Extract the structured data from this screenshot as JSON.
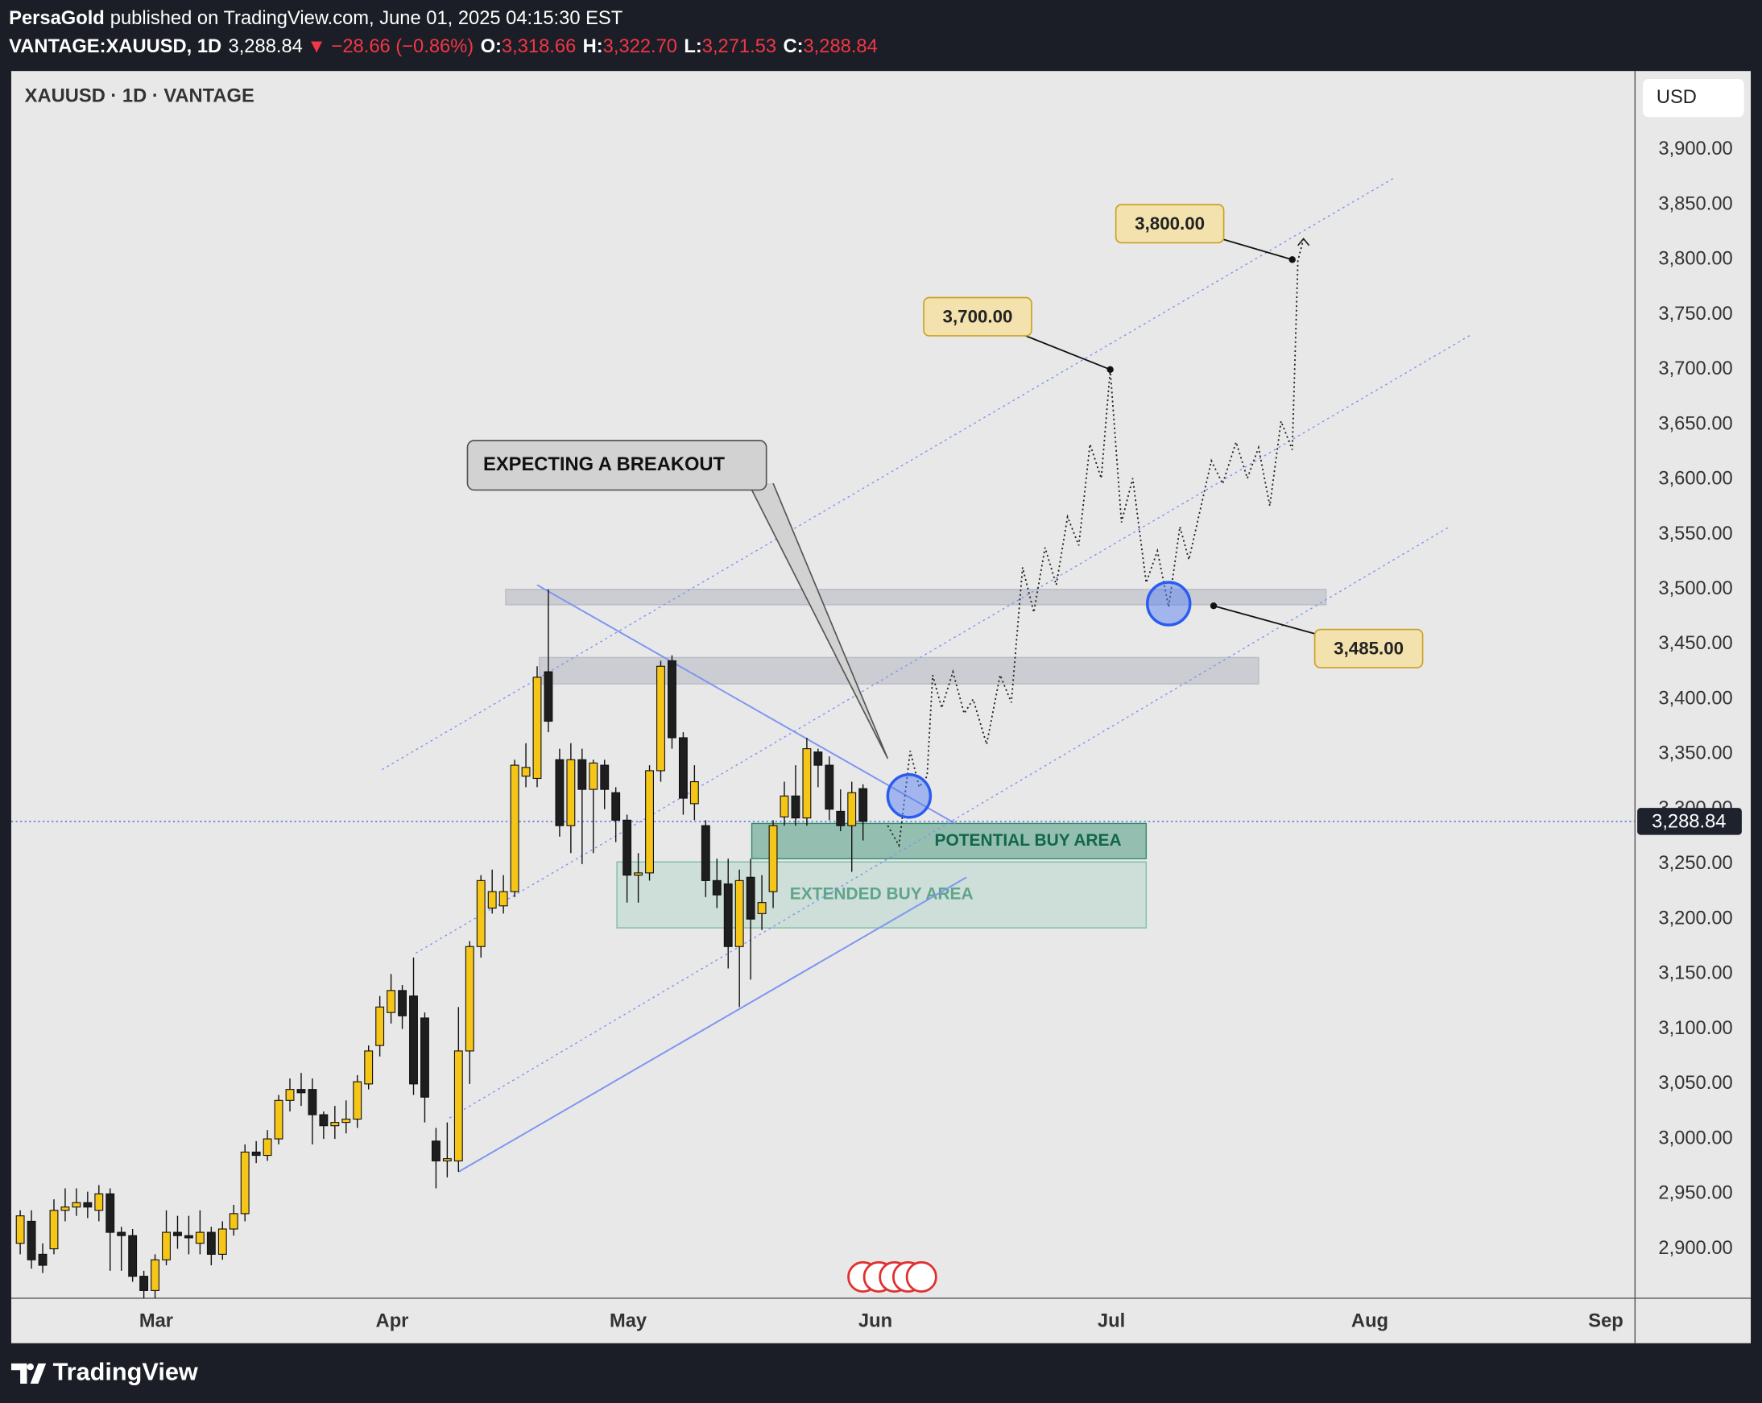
{
  "header": {
    "publisher": "PersaGold",
    "published": "published on TradingView.com, June 01, 2025 04:15:30 EST",
    "symbol": "VANTAGE:XAUUSD, 1D",
    "price": "3,288.84",
    "change": "▼ −28.66 (−0.86%)",
    "ohlc": [
      {
        "key": "O:",
        "value": "3,318.66"
      },
      {
        "key": "H:",
        "value": "3,322.70"
      },
      {
        "key": "L:",
        "value": "3,271.53"
      },
      {
        "key": "C:",
        "value": "3,288.84"
      }
    ]
  },
  "chart_data": {
    "type": "candlestick",
    "title": "XAUUSD · 1D · VANTAGE",
    "currency": "USD",
    "grid": false,
    "up_color": "#f5c518",
    "down_color": "#1e1e1e",
    "x": [
      0,
      1,
      2,
      3,
      4,
      5,
      6,
      7,
      8,
      9,
      10,
      11,
      12,
      13,
      14,
      15,
      16,
      17,
      18,
      19,
      20,
      21,
      22,
      23,
      24,
      25,
      26,
      27,
      28,
      29,
      30,
      31,
      32,
      33,
      34,
      35,
      36,
      37,
      38,
      39,
      40,
      41,
      42,
      43,
      44,
      45,
      46,
      47,
      48,
      49,
      50,
      51,
      52,
      53,
      54,
      55,
      56,
      57,
      58,
      59,
      60,
      61,
      62,
      63,
      64,
      65,
      66,
      67,
      68,
      69,
      70,
      71,
      72,
      73,
      74,
      75
    ],
    "open": [
      2905,
      2925,
      2895,
      2900,
      2935,
      2938,
      2942,
      2935,
      2950,
      2915,
      2912,
      2875,
      2862,
      2890,
      2915,
      2912,
      2905,
      2915,
      2895,
      2918,
      2932,
      2988,
      2985,
      3000,
      3035,
      3045,
      3045,
      3022,
      3012,
      3015,
      3018,
      3050,
      3085,
      3115,
      3135,
      3130,
      3110,
      2998,
      2980,
      2980,
      3080,
      3175,
      3210,
      3212,
      3225,
      3330,
      3328,
      3425,
      3345,
      3285,
      3345,
      3318,
      3340,
      3315,
      3290,
      3240,
      3242,
      3335,
      3435,
      3365,
      3305,
      3285,
      3235,
      3232,
      3175,
      3238,
      3205,
      3225,
      3293,
      3312,
      3292,
      3352,
      3340,
      3298,
      3285,
      3318.66
    ],
    "high": [
      2935,
      2935,
      2905,
      2945,
      2955,
      2955,
      2952,
      2958,
      2955,
      2920,
      2918,
      2880,
      2895,
      2935,
      2930,
      2930,
      2935,
      2920,
      2925,
      2940,
      2995,
      2998,
      3008,
      3040,
      3055,
      3060,
      3055,
      3025,
      3030,
      3035,
      3058,
      3085,
      3130,
      3150,
      3140,
      3165,
      3115,
      3010,
      3015,
      3120,
      3180,
      3240,
      3245,
      3240,
      3345,
      3360,
      3430,
      3500,
      3355,
      3360,
      3355,
      3345,
      3345,
      3320,
      3295,
      3260,
      3340,
      3435,
      3440,
      3370,
      3340,
      3290,
      3255,
      3255,
      3245,
      3255,
      3240,
      3290,
      3325,
      3340,
      3365,
      3355,
      3348,
      3318,
      3325,
      3322.7
    ],
    "low": [
      2895,
      2882,
      2878,
      2895,
      2925,
      2930,
      2928,
      2925,
      2880,
      2880,
      2870,
      2855,
      2855,
      2885,
      2900,
      2895,
      2895,
      2885,
      2890,
      2912,
      2925,
      2978,
      2980,
      2995,
      3025,
      3030,
      2995,
      3000,
      3000,
      3005,
      3010,
      3045,
      3075,
      3105,
      3100,
      3040,
      3015,
      2955,
      2965,
      2970,
      3050,
      3165,
      3205,
      3205,
      3220,
      3320,
      3320,
      3370,
      3275,
      3260,
      3250,
      3260,
      3300,
      3270,
      3215,
      3215,
      3235,
      3325,
      3355,
      3295,
      3290,
      3220,
      3210,
      3155,
      3120,
      3145,
      3190,
      3210,
      3285,
      3285,
      3285,
      3320,
      3290,
      3280,
      3243,
      3271.53
    ],
    "close": [
      2930,
      2890,
      2885,
      2935,
      2938,
      2942,
      2938,
      2950,
      2915,
      2912,
      2875,
      2862,
      2890,
      2915,
      2912,
      2910,
      2915,
      2895,
      2918,
      2932,
      2988,
      2985,
      3000,
      3035,
      3045,
      3042,
      3022,
      3012,
      3015,
      3018,
      3052,
      3080,
      3120,
      3135,
      3112,
      3050,
      3038,
      2980,
      2982,
      3080,
      3175,
      3235,
      3225,
      3225,
      3340,
      3338,
      3420,
      3380,
      3285,
      3345,
      3318,
      3342,
      3318,
      3290,
      3240,
      3242,
      3335,
      3430,
      3365,
      3310,
      3325,
      3235,
      3222,
      3175,
      3235,
      3200,
      3215,
      3285,
      3312,
      3292,
      3355,
      3340,
      3300,
      3285,
      3315,
      3288.84
    ],
    "xlim": [
      -0.8,
      143.7
    ],
    "xticks": [
      {
        "value": 12.1,
        "label": "Mar"
      },
      {
        "value": 33.1,
        "label": "Apr"
      },
      {
        "value": 54.1,
        "label": "May"
      },
      {
        "value": 76.1,
        "label": "Jun"
      },
      {
        "value": 97.1,
        "label": "Jul"
      },
      {
        "value": 120.1,
        "label": "Aug"
      },
      {
        "value": 141.1,
        "label": "Sep"
      }
    ],
    "ylim": [
      2855,
      3971.6
    ],
    "yticks": [
      {
        "value": 2900,
        "label": "2,900.00"
      },
      {
        "value": 2950,
        "label": "2,950.00"
      },
      {
        "value": 3000,
        "label": "3,000.00"
      },
      {
        "value": 3050,
        "label": "3,050.00"
      },
      {
        "value": 3100,
        "label": "3,100.00"
      },
      {
        "value": 3150,
        "label": "3,150.00"
      },
      {
        "value": 3200,
        "label": "3,200.00"
      },
      {
        "value": 3250,
        "label": "3,250.00"
      },
      {
        "value": 3300,
        "label": "3,300.00"
      },
      {
        "value": 3350,
        "label": "3,350.00"
      },
      {
        "value": 3400,
        "label": "3,400.00"
      },
      {
        "value": 3450,
        "label": "3,450.00"
      },
      {
        "value": 3500,
        "label": "3,500.00"
      },
      {
        "value": 3550,
        "label": "3,550.00"
      },
      {
        "value": 3600,
        "label": "3,600.00"
      },
      {
        "value": 3650,
        "label": "3,650.00"
      },
      {
        "value": 3700,
        "label": "3,700.00"
      },
      {
        "value": 3750,
        "label": "3,750.00"
      },
      {
        "value": 3800,
        "label": "3,800.00"
      },
      {
        "value": 3850,
        "label": "3,850.00"
      },
      {
        "value": 3900,
        "label": "3,900.00"
      }
    ],
    "last_price": {
      "value": 3288.84,
      "label": "3,288.84"
    },
    "zones": [
      {
        "label": "POTENTIAL BUY AREA",
        "x": [
          65.1,
          100.2
        ],
        "y": [
          3255,
          3287
        ],
        "color": "#2e8b6a"
      },
      {
        "label": "EXTENDED BUY AREA",
        "x": [
          53.1,
          100.2
        ],
        "y": [
          3192,
          3252
        ],
        "color": "#7fbfa8"
      }
    ],
    "levels": [
      {
        "x": [
          43.2,
          116.2
        ],
        "y": [
          3486,
          3500
        ]
      },
      {
        "x": [
          46.2,
          110.2
        ],
        "y": [
          3414,
          3438
        ]
      }
    ],
    "trendlines": [
      {
        "x": [
          46,
          83.2
        ],
        "values": [
          3504,
          3287
        ],
        "style": "solid"
      },
      {
        "x": [
          39,
          84.2
        ],
        "values": [
          2970,
          3238
        ],
        "style": "solid"
      },
      {
        "x": [
          32.2,
          122.2
        ],
        "values": [
          3336,
          3874
        ],
        "style": "dotted"
      },
      {
        "x": [
          35.2,
          129
        ],
        "values": [
          3169,
          3731
        ],
        "style": "dotted"
      },
      {
        "x": [
          38.2,
          127.2
        ],
        "values": [
          3019,
          3557
        ],
        "style": "dotted"
      }
    ],
    "projection": {
      "x": [
        77.2,
        78.2,
        79.2,
        80,
        80.7,
        81.2,
        82,
        83,
        84,
        84.8,
        86,
        87.2,
        88.2,
        89.2,
        90.2,
        91.2,
        92.2,
        93.2,
        94.2,
        95.2,
        96.2,
        97,
        98,
        99,
        100.2,
        101.2,
        102.2,
        103.2,
        104,
        106,
        107,
        108.2,
        109.2,
        110.2,
        111.2,
        112.2,
        113.2,
        113.7,
        114.2
      ],
      "values": [
        3285,
        3267,
        3353,
        3320,
        3330,
        3422,
        3392,
        3425,
        3387,
        3400,
        3359,
        3422,
        3397,
        3520,
        3479,
        3538,
        3504,
        3566,
        3540,
        3632,
        3601,
        3700,
        3561,
        3601,
        3506,
        3535,
        3484,
        3557,
        3527,
        3617,
        3596,
        3634,
        3601,
        3629,
        3576,
        3653,
        3627,
        3799,
        3819
      ]
    },
    "circles": [
      {
        "x": 79.1,
        "value": 3312
      },
      {
        "x": 102.2,
        "value": 3487
      }
    ],
    "targets": [
      {
        "x": 113.2,
        "value": 3800,
        "label": "3,800.00"
      },
      {
        "x": 97,
        "value": 3700,
        "label": "3,700.00"
      },
      {
        "x": 106.2,
        "value": 3485,
        "label": "3,485.00"
      }
    ],
    "callout": {
      "text": "EXPECTING A BREAKOUT",
      "x": 77.2,
      "value": 3346
    }
  },
  "footer": {
    "brand": "TradingView"
  }
}
